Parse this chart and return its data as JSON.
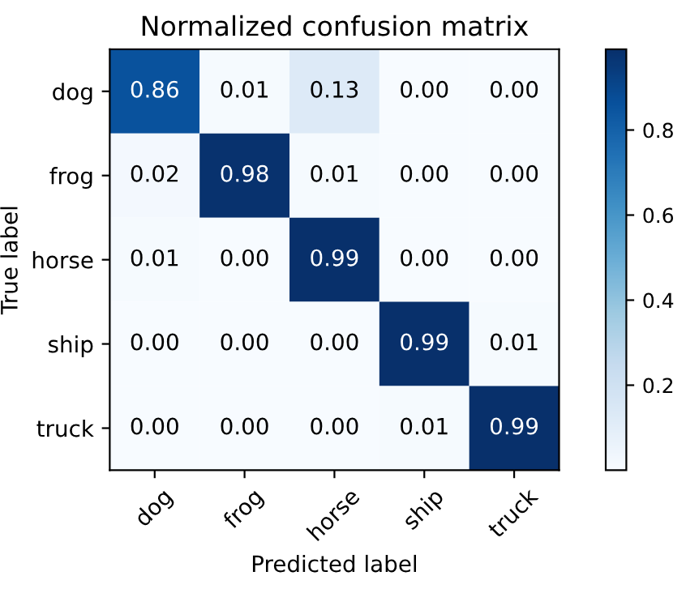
{
  "chart_data": {
    "type": "heatmap",
    "title": "Normalized confusion matrix",
    "xlabel": "Predicted label",
    "ylabel": "True label",
    "categories": [
      "dog",
      "frog",
      "horse",
      "ship",
      "truck"
    ],
    "y_categories": [
      "dog",
      "frog",
      "horse",
      "ship",
      "truck"
    ],
    "cells": [
      [
        0.86,
        0.01,
        0.13,
        0.0,
        0.0
      ],
      [
        0.02,
        0.98,
        0.01,
        0.0,
        0.0
      ],
      [
        0.01,
        0.0,
        0.99,
        0.0,
        0.0
      ],
      [
        0.0,
        0.0,
        0.0,
        0.99,
        0.01
      ],
      [
        0.0,
        0.0,
        0.0,
        0.01,
        0.99
      ]
    ],
    "cell_labels": [
      [
        "0.86",
        "0.01",
        "0.13",
        "0.00",
        "0.00"
      ],
      [
        "0.02",
        "0.98",
        "0.01",
        "0.00",
        "0.00"
      ],
      [
        "0.01",
        "0.00",
        "0.99",
        "0.00",
        "0.00"
      ],
      [
        "0.00",
        "0.00",
        "0.00",
        "0.99",
        "0.01"
      ],
      [
        "0.00",
        "0.00",
        "0.00",
        "0.01",
        "0.99"
      ]
    ],
    "clim": [
      0.0,
      0.99
    ],
    "cticks": [
      0.2,
      0.4,
      0.6,
      0.8
    ]
  }
}
